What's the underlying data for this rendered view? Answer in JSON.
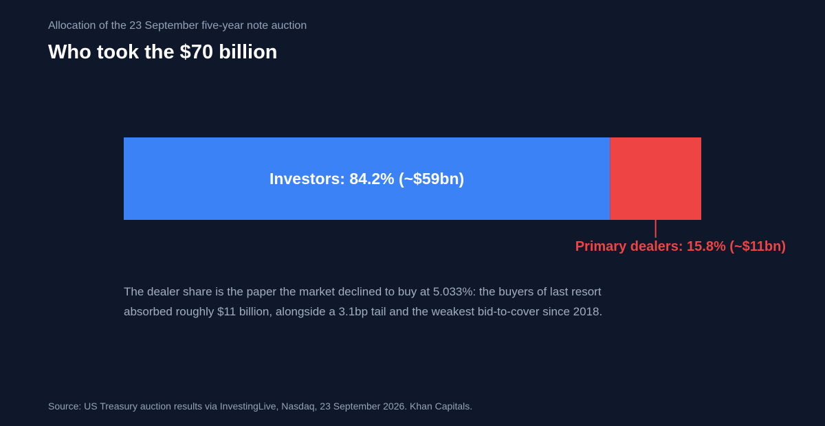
{
  "header": {
    "subtitle": "Allocation of the 23 September five-year note auction",
    "title": "Who took the $70 billion"
  },
  "chart_data": {
    "type": "bar",
    "stacked": true,
    "orientation": "horizontal",
    "total": 100,
    "segments": [
      {
        "name": "Investors",
        "value": 84.2,
        "label": "Investors: 84.2% (~$59bn)",
        "color": "#3b82f6",
        "label_placement": "inside"
      },
      {
        "name": "Primary dealers",
        "value": 15.8,
        "label": "Primary dealers: 15.8% (~$11bn)",
        "color": "#ef4444",
        "label_placement": "below"
      }
    ]
  },
  "annotation": {
    "line1": "The dealer share is the paper the market declined to buy at 5.033%: the buyers of last resort",
    "line2": "absorbed roughly $11 billion, alongside a 3.1bp tail and the weakest bid-to-cover since 2018."
  },
  "footer": {
    "source": "Source: US Treasury auction results via InvestingLive, Nasdaq, 23 September 2026. Khan Capitals."
  }
}
